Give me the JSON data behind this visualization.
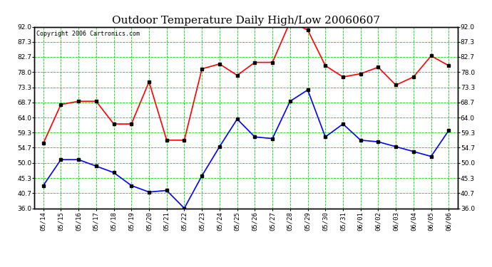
{
  "title": "Outdoor Temperature Daily High/Low 20060607",
  "copyright": "Copyright 2006 Cartronics.com",
  "labels": [
    "05/14",
    "05/15",
    "05/16",
    "05/17",
    "05/18",
    "05/19",
    "05/20",
    "05/21",
    "05/22",
    "05/23",
    "05/24",
    "05/25",
    "05/26",
    "05/27",
    "05/28",
    "05/29",
    "05/30",
    "05/31",
    "06/01",
    "06/02",
    "06/03",
    "06/04",
    "06/05",
    "06/06"
  ],
  "high": [
    56.0,
    68.0,
    69.0,
    69.0,
    62.0,
    62.0,
    75.0,
    57.0,
    57.0,
    79.0,
    80.5,
    77.0,
    81.0,
    81.0,
    93.5,
    91.0,
    80.0,
    76.5,
    77.5,
    79.5,
    74.0,
    76.5,
    83.0,
    80.0
  ],
  "low": [
    43.0,
    51.0,
    51.0,
    49.0,
    47.0,
    43.0,
    41.0,
    41.5,
    36.0,
    46.0,
    55.0,
    63.5,
    58.0,
    57.5,
    69.0,
    72.5,
    58.0,
    62.0,
    57.0,
    56.5,
    55.0,
    53.5,
    52.0,
    60.0
  ],
  "high_color": "#ff0000",
  "low_color": "#0000ff",
  "marker_color": "#000000",
  "bg_color": "#ffffff",
  "grid_color": "#00dd00",
  "border_color": "#000000",
  "ylim_min": 36.0,
  "ylim_max": 92.0,
  "yticks": [
    36.0,
    40.7,
    45.3,
    50.0,
    54.7,
    59.3,
    64.0,
    68.7,
    73.3,
    78.0,
    82.7,
    87.3,
    92.0
  ],
  "title_fontsize": 11,
  "copyright_fontsize": 6,
  "tick_fontsize": 6.5,
  "marker_size": 3,
  "line_width": 1.2
}
